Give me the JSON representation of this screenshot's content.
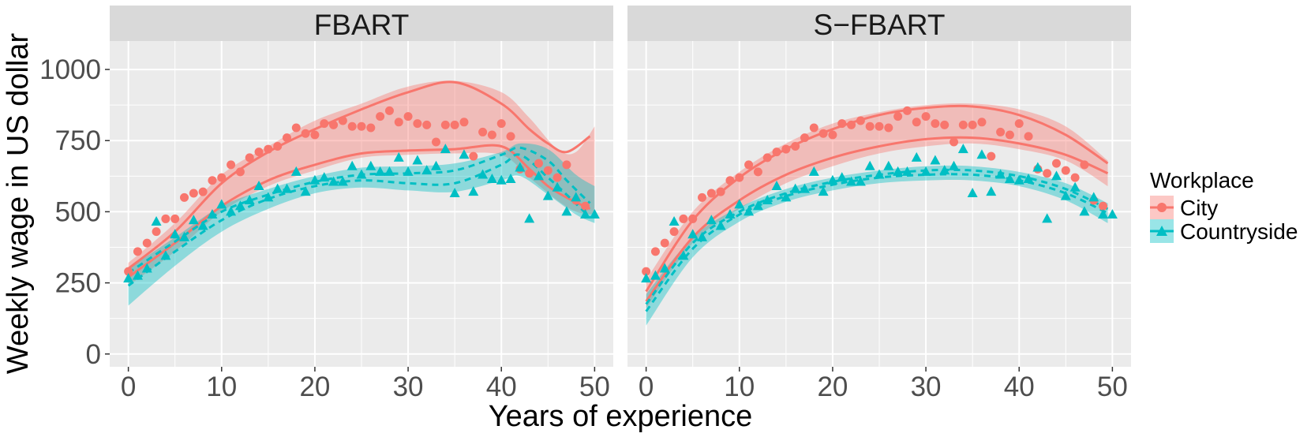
{
  "chart_data": {
    "type": "scatter",
    "xlabel": "Years of experience",
    "ylabel": "Weekly wage in US dollar",
    "xlim": [
      -2,
      52
    ],
    "ylim": [
      -45,
      1100
    ],
    "x_ticks": [
      0,
      10,
      20,
      30,
      40,
      50
    ],
    "y_ticks": [
      0,
      250,
      500,
      750,
      1000
    ],
    "grid": true,
    "legend": {
      "title": "Workplace",
      "position": "right",
      "entries": [
        {
          "label": "City",
          "color": "#F8766D",
          "marker": "circle"
        },
        {
          "label": "Countryside",
          "color": "#00BFC4",
          "marker": "triangle"
        }
      ]
    },
    "colors": {
      "city": "#F8766D",
      "countryside": "#00BFC4"
    },
    "points": {
      "city": {
        "x": [
          0,
          1,
          2,
          3,
          4,
          5,
          6,
          7,
          8,
          9,
          10,
          11,
          12,
          13,
          14,
          15,
          16,
          17,
          18,
          19,
          20,
          21,
          22,
          23,
          24,
          25,
          26,
          27,
          28,
          29,
          30,
          31,
          32,
          33,
          34,
          35,
          36,
          37,
          38,
          39,
          40,
          41,
          42,
          43,
          44,
          45,
          46,
          47,
          48,
          49
        ],
        "y": [
          290,
          360,
          390,
          430,
          475,
          475,
          550,
          565,
          570,
          610,
          620,
          665,
          640,
          690,
          710,
          720,
          730,
          760,
          795,
          775,
          770,
          810,
          805,
          820,
          800,
          800,
          795,
          835,
          855,
          815,
          835,
          810,
          805,
          745,
          805,
          805,
          815,
          695,
          780,
          770,
          810,
          765,
          650,
          635,
          670,
          645,
          620,
          665,
          540,
          520
        ]
      },
      "countryside": {
        "x": [
          0,
          1,
          2,
          3,
          4,
          5,
          6,
          7,
          8,
          9,
          10,
          11,
          12,
          13,
          14,
          15,
          16,
          17,
          18,
          19,
          20,
          21,
          22,
          23,
          24,
          25,
          26,
          27,
          28,
          29,
          30,
          31,
          32,
          33,
          34,
          35,
          36,
          37,
          38,
          39,
          40,
          41,
          42,
          43,
          44,
          45,
          46,
          47,
          48,
          49,
          50
        ],
        "y": [
          265,
          275,
          300,
          465,
          345,
          420,
          410,
          470,
          450,
          490,
          525,
          500,
          520,
          540,
          590,
          550,
          580,
          580,
          640,
          570,
          610,
          620,
          605,
          605,
          660,
          630,
          660,
          640,
          640,
          690,
          640,
          680,
          645,
          660,
          720,
          565,
          700,
          570,
          630,
          615,
          610,
          615,
          655,
          475,
          625,
          555,
          585,
          500,
          550,
          490,
          490
        ]
      }
    },
    "panels": [
      {
        "title": "FBART",
        "city": {
          "x": [
            0,
            5,
            10,
            15,
            20,
            25,
            30,
            35,
            40,
            43,
            45,
            47,
            49.5
          ],
          "upper": [
            300,
            430,
            600,
            710,
            790,
            860,
            920,
            955,
            880,
            790,
            740,
            710,
            765
          ],
          "lower": [
            270,
            390,
            520,
            610,
            665,
            705,
            715,
            720,
            730,
            650,
            590,
            550,
            510
          ]
        },
        "countryside": {
          "x": [
            0,
            5,
            10,
            15,
            20,
            25,
            30,
            35,
            40,
            42,
            45,
            47,
            49.5
          ],
          "upper": [
            285,
            395,
            500,
            560,
            605,
            630,
            635,
            645,
            700,
            725,
            680,
            610,
            530
          ],
          "lower": [
            240,
            360,
            470,
            545,
            590,
            610,
            600,
            600,
            665,
            700,
            620,
            560,
            480
          ]
        },
        "band": {
          "city": {
            "x": [
              0,
              5,
              10,
              15,
              20,
              25,
              30,
              35,
              40,
              43,
              46,
              48,
              50
            ],
            "upper": [
              320,
              460,
              630,
              730,
              820,
              880,
              940,
              960,
              920,
              830,
              720,
              710,
              800
            ],
            "lower": [
              240,
              360,
              500,
              590,
              645,
              690,
              700,
              705,
              700,
              620,
              540,
              500,
              490
            ]
          },
          "countryside": {
            "x": [
              0,
              5,
              10,
              15,
              20,
              25,
              30,
              35,
              40,
              42,
              45,
              48,
              50
            ],
            "upper": [
              300,
              410,
              520,
              580,
              625,
              655,
              660,
              670,
              710,
              740,
              720,
              630,
              590
            ],
            "lower": [
              170,
              310,
              430,
              510,
              565,
              585,
              575,
              570,
              610,
              625,
              560,
              490,
              460
            ]
          }
        }
      },
      {
        "title": "S−FBART",
        "city": {
          "x": [
            0,
            5,
            10,
            15,
            20,
            25,
            30,
            35,
            40,
            45,
            49.5
          ],
          "upper": [
            220,
            470,
            620,
            720,
            790,
            840,
            865,
            870,
            840,
            770,
            670
          ],
          "lower": [
            185,
            410,
            540,
            630,
            690,
            730,
            755,
            760,
            740,
            700,
            635
          ]
        },
        "countryside": {
          "x": [
            0,
            5,
            10,
            15,
            20,
            25,
            30,
            35,
            40,
            45,
            49.5
          ],
          "upper": [
            175,
            390,
            500,
            565,
            605,
            630,
            645,
            645,
            625,
            580,
            510
          ],
          "lower": [
            150,
            370,
            490,
            555,
            595,
            620,
            630,
            630,
            610,
            565,
            495
          ]
        },
        "band": {
          "city": {
            "x": [
              0,
              5,
              10,
              15,
              20,
              25,
              30,
              35,
              40,
              45,
              49.5
            ],
            "upper": [
              260,
              500,
              640,
              740,
              810,
              850,
              875,
              880,
              860,
              800,
              680
            ],
            "lower": [
              160,
              390,
              510,
              600,
              660,
              705,
              730,
              740,
              720,
              680,
              590
            ]
          },
          "countryside": {
            "x": [
              0,
              5,
              10,
              15,
              20,
              25,
              30,
              35,
              40,
              45,
              49.5
            ],
            "upper": [
              210,
              410,
              515,
              580,
              620,
              645,
              660,
              660,
              640,
              600,
              530
            ],
            "lower": [
              100,
              340,
              465,
              535,
              575,
              600,
              610,
              610,
              590,
              540,
              460
            ]
          }
        }
      }
    ]
  }
}
